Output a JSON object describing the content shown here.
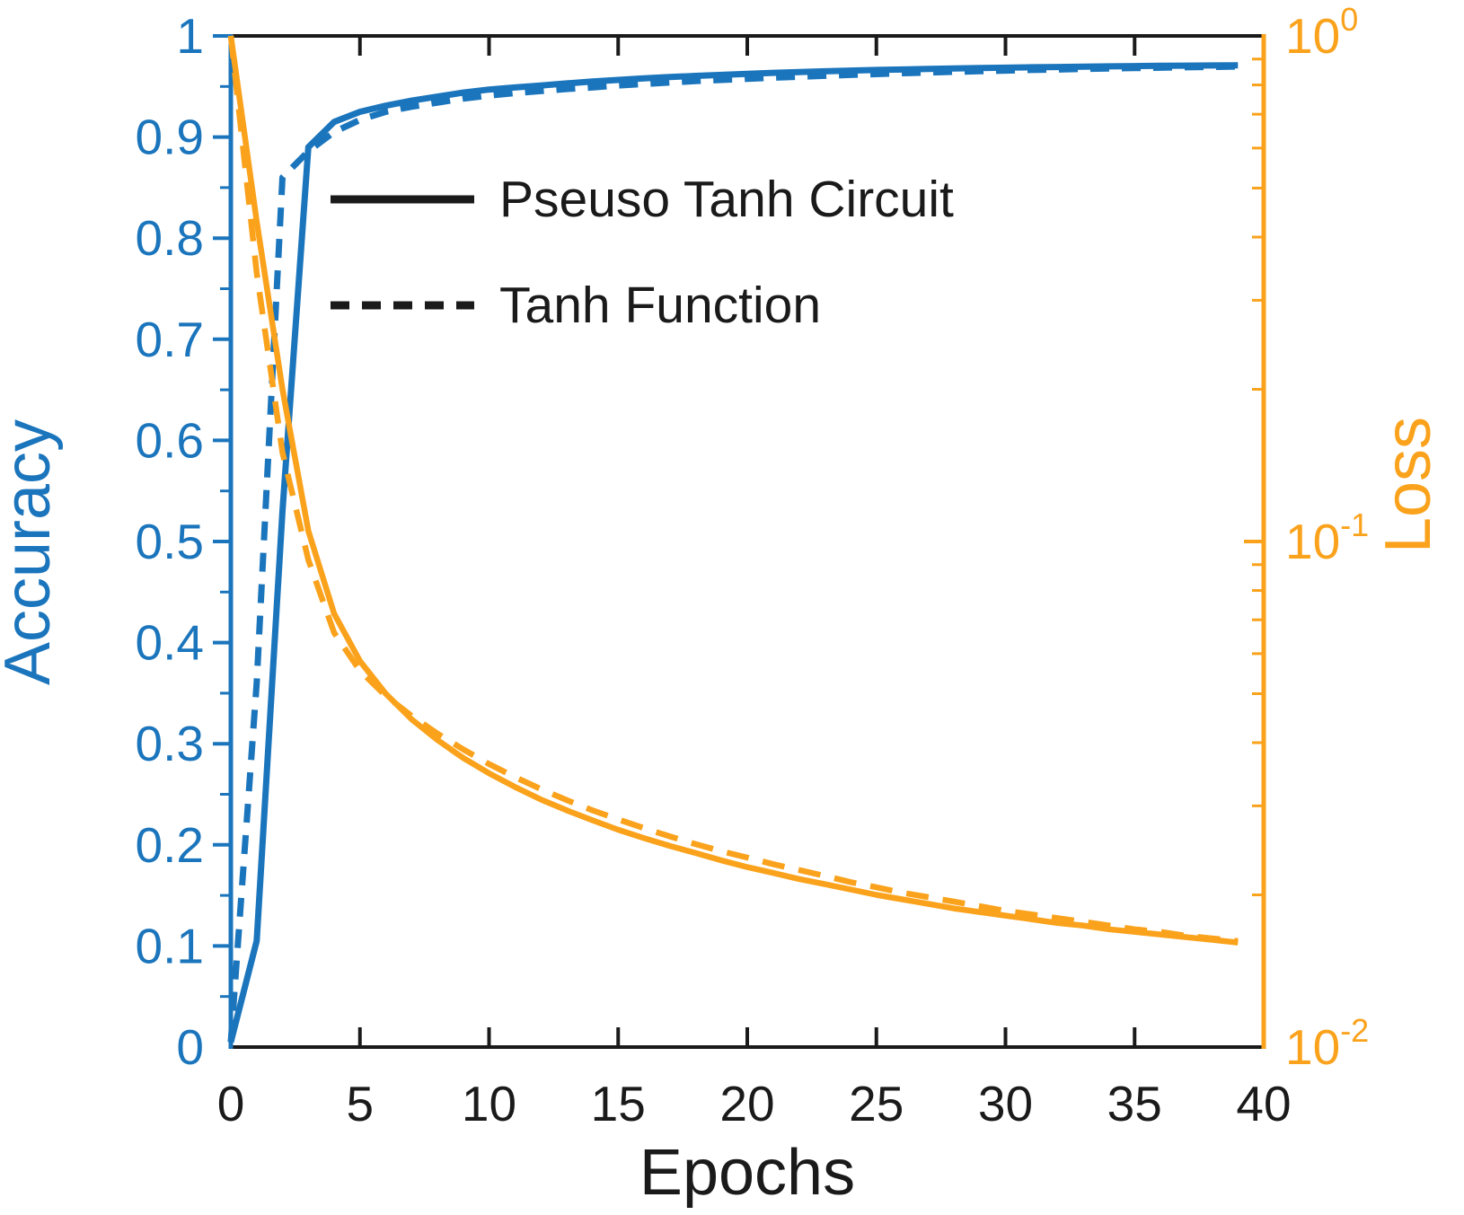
{
  "colors": {
    "accuracy_blue": "#1B75BC",
    "loss_orange": "#FAA21B",
    "axis_black": "#1A1A1A",
    "background": "#FFFFFF"
  },
  "chart_data": {
    "type": "line",
    "title": "",
    "xlabel": "Epochs",
    "left_axis": {
      "label": "Accuracy",
      "color": "#1B75BC",
      "scale": "linear",
      "lim": [
        0,
        1
      ],
      "tick_values": [
        0,
        0.1,
        0.2,
        0.3,
        0.4,
        0.5,
        0.6,
        0.7,
        0.8,
        0.9,
        1
      ],
      "tick_labels": [
        "0",
        "0.1",
        "0.2",
        "0.3",
        "0.4",
        "0.5",
        "0.6",
        "0.7",
        "0.8",
        "0.9",
        "1"
      ],
      "minor_tick_step": 0.05
    },
    "right_axis": {
      "label": "Loss",
      "color": "#FAA21B",
      "scale": "log",
      "lim": [
        0.01,
        1
      ],
      "ticks": [
        {
          "mantissa": "10",
          "exponent": "0",
          "value": 1
        },
        {
          "mantissa": "10",
          "exponent": "-1",
          "value": 0.1
        },
        {
          "mantissa": "10",
          "exponent": "-2",
          "value": 0.01
        }
      ]
    },
    "x_axis": {
      "lim": [
        0,
        40
      ],
      "tick_values": [
        0,
        5,
        10,
        15,
        20,
        25,
        30,
        35,
        40
      ],
      "tick_labels": [
        "0",
        "5",
        "10",
        "15",
        "20",
        "25",
        "30",
        "35",
        "40"
      ]
    },
    "x": [
      0,
      1,
      2,
      3,
      4,
      5,
      6,
      7,
      8,
      9,
      10,
      11,
      12,
      13,
      14,
      15,
      16,
      17,
      18,
      19,
      20,
      21,
      22,
      23,
      24,
      25,
      26,
      27,
      28,
      29,
      30,
      31,
      32,
      33,
      34,
      35,
      36,
      37,
      38,
      39
    ],
    "series": [
      {
        "name": "Pseuso Tanh Circuit",
        "measure": "accuracy",
        "axis": "left",
        "style": "solid",
        "color": "#1B75BC",
        "values": [
          0.005,
          0.105,
          0.53,
          0.89,
          0.915,
          0.925,
          0.931,
          0.936,
          0.94,
          0.944,
          0.947,
          0.949,
          0.951,
          0.953,
          0.955,
          0.9565,
          0.958,
          0.9593,
          0.9605,
          0.9615,
          0.9625,
          0.9635,
          0.9643,
          0.965,
          0.9657,
          0.9663,
          0.9668,
          0.9673,
          0.9678,
          0.9682,
          0.9686,
          0.969,
          0.9693,
          0.9696,
          0.9699,
          0.9702,
          0.9704,
          0.9706,
          0.9708,
          0.971
        ]
      },
      {
        "name": "Tanh Function",
        "measure": "accuracy",
        "axis": "left",
        "style": "dashed",
        "color": "#1B75BC",
        "values": [
          0.005,
          0.36,
          0.86,
          0.886,
          0.905,
          0.917,
          0.925,
          0.93,
          0.934,
          0.938,
          0.941,
          0.9435,
          0.9455,
          0.9475,
          0.949,
          0.951,
          0.9525,
          0.954,
          0.9553,
          0.9565,
          0.9576,
          0.9587,
          0.9597,
          0.9606,
          0.9615,
          0.9623,
          0.9631,
          0.9638,
          0.9645,
          0.9651,
          0.9657,
          0.9663,
          0.9668,
          0.9673,
          0.9678,
          0.9682,
          0.9686,
          0.969,
          0.9694,
          0.9697
        ]
      },
      {
        "name": "Pseuso Tanh Circuit",
        "measure": "loss",
        "axis": "right",
        "style": "solid",
        "color": "#FAA21B",
        "values": [
          1.0,
          0.43,
          0.2,
          0.105,
          0.072,
          0.058,
          0.05,
          0.0445,
          0.0405,
          0.0373,
          0.0348,
          0.0327,
          0.0309,
          0.0294,
          0.0281,
          0.0269,
          0.0259,
          0.025,
          0.0242,
          0.0234,
          0.0227,
          0.0221,
          0.0215,
          0.021,
          0.0205,
          0.02,
          0.0196,
          0.0192,
          0.0188,
          0.0185,
          0.0182,
          0.0179,
          0.0176,
          0.0174,
          0.0171,
          0.0169,
          0.0167,
          0.0165,
          0.0163,
          0.0161
        ]
      },
      {
        "name": "Tanh Function",
        "measure": "loss",
        "axis": "right",
        "style": "dashed",
        "color": "#FAA21B",
        "values": [
          1.0,
          0.34,
          0.15,
          0.092,
          0.066,
          0.0555,
          0.0495,
          0.0452,
          0.0417,
          0.0388,
          0.0363,
          0.0342,
          0.0324,
          0.0308,
          0.0294,
          0.0282,
          0.0271,
          0.0261,
          0.0252,
          0.0244,
          0.0237,
          0.023,
          0.0224,
          0.0218,
          0.0212,
          0.0207,
          0.0202,
          0.0198,
          0.0194,
          0.019,
          0.0186,
          0.0183,
          0.018,
          0.0177,
          0.0174,
          0.0171,
          0.0169,
          0.0166,
          0.0164,
          0.0162
        ]
      }
    ],
    "legend": {
      "position": "upper-left-inside",
      "entries": [
        {
          "label": "Pseuso Tanh Circuit",
          "line": "solid",
          "color": "#1A1A1A"
        },
        {
          "label": "Tanh Function",
          "line": "dashed",
          "color": "#1A1A1A"
        }
      ]
    },
    "grid": false
  }
}
